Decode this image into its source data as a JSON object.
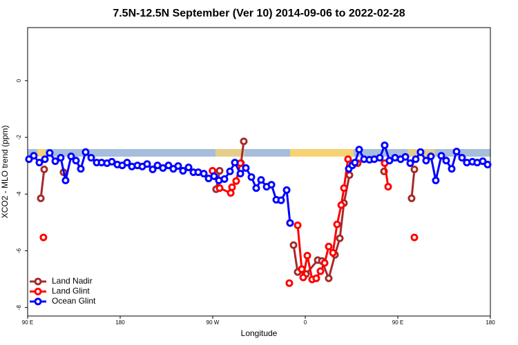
{
  "chart_data": {
    "type": "line",
    "title": "7.5N-12.5N September (Ver 10)   2014-09-06 to 2022-02-28",
    "x_label": "Longitude",
    "y_label": "XCO2 - MLO trend (ppm)",
    "xlim": [
      90,
      540
    ],
    "xticks": [
      {
        "value": 90,
        "label": "90 E"
      },
      {
        "value": 180,
        "label": "180"
      },
      {
        "value": 270,
        "label": "90 W"
      },
      {
        "value": 360,
        "label": "0"
      },
      {
        "value": 450,
        "label": "90 E"
      },
      {
        "value": 540,
        "label": "180"
      }
    ],
    "ylim": [
      -8.3,
      1.87
    ],
    "yticks": [
      0,
      -2,
      -4,
      -6,
      -8
    ],
    "legend": "bottom-left",
    "series": [
      {
        "name": "Land Nadir",
        "color": "#a52a2a",
        "x": [
          102.8,
          106.1,
          null,
          124.9,
          null,
          273.3,
          276.7,
          null,
          297.5,
          300.2,
          null,
          348.6,
          352.6,
          356.6,
          360.7,
          372.1,
          376.1,
          382.8,
          388.9,
          393.6,
          397.6,
          403.0,
          null,
          436.6,
          null,
          463.4,
          466.1
        ],
        "values": [
          -4.15,
          -3.13,
          null,
          -3.23,
          null,
          -3.83,
          -3.18,
          null,
          -2.91,
          -2.14,
          null,
          -5.8,
          -6.75,
          -6.65,
          -6.82,
          -6.33,
          -6.36,
          -6.97,
          -6.14,
          -5.56,
          -4.32,
          -3.33,
          null,
          -3.2,
          null,
          -4.15,
          -3.13
        ]
      },
      {
        "name": "Land Glint",
        "color": "#ff0000",
        "x": [
          105.4,
          null,
          269.8,
          276.7,
          287.5,
          288.8,
          292.8,
          296.9,
          null,
          344.5,
          null,
          352.6,
          356.6,
          358.0,
          362.0,
          366.7,
          370.7,
          374.8,
          378.8,
          382.8,
          386.9,
          390.9,
          395.0,
          397.6,
          401.6,
          411.0,
          null,
          437.2,
          440.6,
          null,
          466.1
        ],
        "values": [
          -5.53,
          null,
          -3.18,
          -3.79,
          -3.96,
          -3.76,
          -3.54,
          -2.91,
          null,
          -7.14,
          null,
          -5.1,
          -6.65,
          -6.94,
          -6.17,
          -7.01,
          -6.97,
          -6.72,
          -6.43,
          -5.85,
          -6.07,
          -5.07,
          -4.39,
          -3.79,
          -2.77,
          -2.91,
          null,
          -2.91,
          -3.74,
          null,
          -5.53
        ]
      },
      {
        "name": "Ocean Glint",
        "color": "#0000ff",
        "x": [
          91.3,
          96.0,
          101.4,
          106.8,
          111.5,
          116.9,
          122.2,
          126.9,
          132.3,
          137.0,
          141.7,
          146.4,
          151.8,
          157.2,
          161.9,
          167.2,
          171.9,
          177.3,
          182.0,
          186.7,
          191.4,
          196.8,
          201.5,
          206.2,
          211.6,
          216.3,
          221.6,
          227.0,
          231.7,
          236.4,
          241.1,
          246.5,
          251.2,
          255.9,
          261.3,
          266.0,
          271.3,
          276.0,
          281.4,
          286.8,
          291.5,
          296.9,
          302.2,
          307.6,
          312.3,
          317.0,
          322.4,
          327.1,
          331.8,
          336.5,
          341.9,
          345.2,
          null,
          402.3,
          405.7,
          408.3,
          412.4,
          417.1,
          422.4,
          427.1,
          432.5,
          437.2,
          441.9,
          447.3,
          452.7,
          457.4,
          462.1,
          467.4,
          472.1,
          477.5,
          482.2,
          486.9,
          492.3,
          497.0,
          502.4,
          507.1,
          512.4,
          517.1,
          522.5,
          527.2,
          532.6,
          537.3
        ],
        "values": [
          -2.77,
          -2.65,
          -2.89,
          -2.77,
          -2.55,
          -2.84,
          -2.72,
          -3.52,
          -2.67,
          -2.82,
          -3.11,
          -2.52,
          -2.72,
          -2.89,
          -2.89,
          -2.91,
          -2.86,
          -2.96,
          -2.99,
          -2.89,
          -3.03,
          -2.99,
          -3.03,
          -2.94,
          -3.13,
          -2.99,
          -3.08,
          -2.99,
          -3.11,
          -3.01,
          -3.18,
          -3.06,
          -3.23,
          -3.23,
          -3.28,
          -3.45,
          -3.37,
          -3.52,
          -3.47,
          -3.2,
          -2.89,
          -3.28,
          -3.08,
          -3.4,
          -3.79,
          -3.5,
          -3.74,
          -3.67,
          -4.2,
          -4.22,
          -3.86,
          -5.02,
          null,
          -3.11,
          -2.99,
          -2.89,
          -2.43,
          -2.77,
          -2.79,
          -2.77,
          -2.72,
          -2.28,
          -2.82,
          -2.72,
          -2.77,
          -2.69,
          -2.91,
          -2.77,
          -2.52,
          -2.82,
          -2.67,
          -3.52,
          -2.65,
          -2.82,
          -3.11,
          -2.5,
          -2.72,
          -2.89,
          -2.86,
          -2.89,
          -2.84,
          -2.96
        ]
      }
    ]
  }
}
